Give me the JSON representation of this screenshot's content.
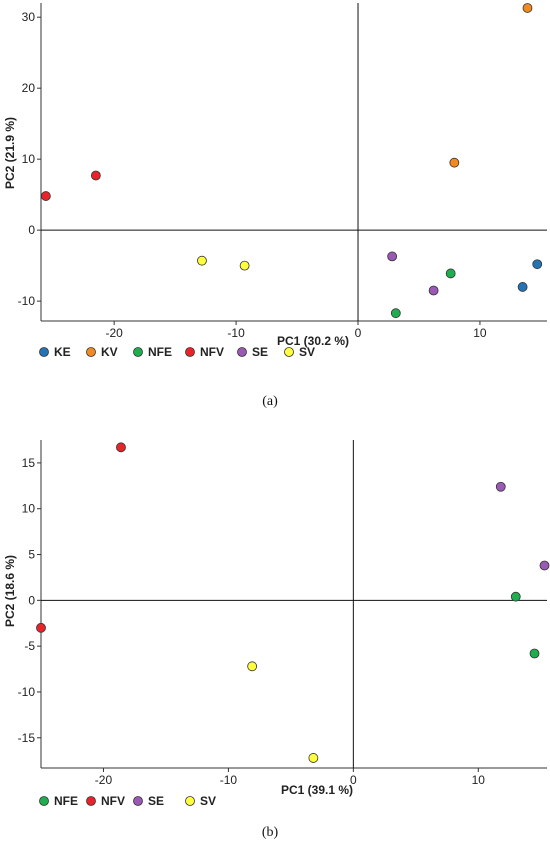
{
  "colors": {
    "KE": "#2474b5",
    "KV": "#f28a20",
    "NFE": "#1fae4e",
    "NFV": "#e8242a",
    "SE": "#9b59b6",
    "SV": "#ffff3c"
  },
  "chart_data": [
    {
      "type": "scatter",
      "caption": "(a)",
      "xlabel": "PC1 (30.2 %)",
      "ylabel": "PC2 (21.9 %)",
      "xlim": [
        -26,
        15.5
      ],
      "ylim": [
        -12.8,
        32
      ],
      "xticks": [
        -20,
        -10,
        0,
        10
      ],
      "yticks": [
        -10,
        0,
        10,
        20,
        30
      ],
      "legend": [
        "KE",
        "KV",
        "NFE",
        "NFV",
        "SE",
        "SV"
      ],
      "series": [
        {
          "name": "KE",
          "points": [
            [
              13.5,
              -8.0
            ],
            [
              14.7,
              -4.8
            ]
          ]
        },
        {
          "name": "KV",
          "points": [
            [
              7.9,
              9.5
            ],
            [
              13.9,
              31.3
            ]
          ]
        },
        {
          "name": "NFE",
          "points": [
            [
              3.1,
              -11.7
            ],
            [
              7.6,
              -6.1
            ]
          ]
        },
        {
          "name": "NFV",
          "points": [
            [
              -25.6,
              4.8
            ],
            [
              -21.5,
              7.7
            ]
          ]
        },
        {
          "name": "SE",
          "points": [
            [
              2.8,
              -3.7
            ],
            [
              6.2,
              -8.5
            ]
          ]
        },
        {
          "name": "SV",
          "points": [
            [
              -12.8,
              -4.3
            ],
            [
              -9.3,
              -5.0
            ]
          ]
        }
      ]
    },
    {
      "type": "scatter",
      "caption": "(b)",
      "xlabel": "PC1 (39.1 %)",
      "ylabel": "PC2 (18.6 %)",
      "xlim": [
        -25,
        15.5
      ],
      "ylim": [
        -18.3,
        17.5
      ],
      "xticks": [
        -20,
        -10,
        0,
        10
      ],
      "yticks": [
        -15,
        -10,
        -5,
        0,
        5,
        10,
        15
      ],
      "legend": [
        "NFE",
        "NFV",
        "SE",
        "SV"
      ],
      "series": [
        {
          "name": "NFE",
          "points": [
            [
              13.0,
              0.4
            ],
            [
              14.5,
              -5.8
            ]
          ]
        },
        {
          "name": "NFV",
          "points": [
            [
              -25.0,
              -3.0
            ],
            [
              -18.6,
              16.7
            ]
          ]
        },
        {
          "name": "SE",
          "points": [
            [
              11.8,
              12.4
            ],
            [
              15.3,
              3.8
            ]
          ]
        },
        {
          "name": "SV",
          "points": [
            [
              -8.1,
              -7.2
            ],
            [
              -3.2,
              -17.2
            ]
          ]
        }
      ]
    }
  ]
}
